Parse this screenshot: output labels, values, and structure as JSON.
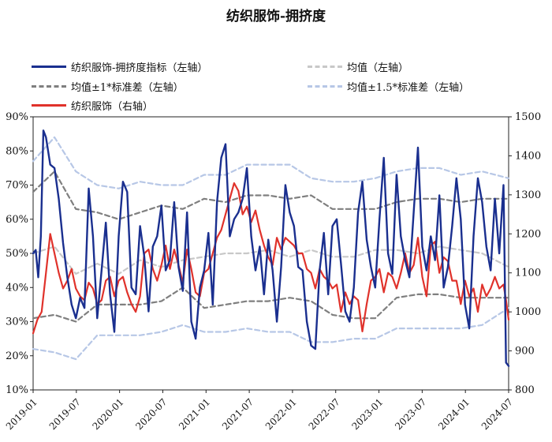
{
  "chart_data": {
    "type": "line",
    "title": "纺织服饰-拥挤度",
    "xlabel": "",
    "ylabel_left": "",
    "ylabel_right": "",
    "y_left": {
      "min": 10,
      "max": 90,
      "ticks": [
        "10%",
        "20%",
        "30%",
        "40%",
        "50%",
        "60%",
        "70%",
        "80%",
        "90%"
      ]
    },
    "y_right": {
      "min": 800,
      "max": 1500,
      "ticks": [
        "800",
        "900",
        "1000",
        "1100",
        "1200",
        "1300",
        "1400",
        "1500"
      ]
    },
    "x_ticks": [
      "2019-01",
      "2019-07",
      "2020-01",
      "2020-07",
      "2021-01",
      "2021-07",
      "2022-01",
      "2022-07",
      "2023-01",
      "2023-07",
      "2024-01",
      "2024-07"
    ],
    "legend": [
      {
        "label": "纺织服饰-拥挤度指标（左轴）",
        "color": "#1a2f8f",
        "style": "solid"
      },
      {
        "label": "均值（左轴）",
        "color": "#c8c8c8",
        "style": "dashed"
      },
      {
        "label": "均值±1*标准差（左轴）",
        "color": "#7f7f7f",
        "style": "dashed"
      },
      {
        "label": "均值±1.5*标准差（左轴）",
        "color": "#b7c7e6",
        "style": "dashed"
      },
      {
        "label": "纺织服饰（右轴）",
        "color": "#e0322b",
        "style": "solid"
      }
    ],
    "series": [
      {
        "name": "纺织服饰-拥挤度指标（左轴）",
        "axis": "left",
        "color": "#1a2f8f",
        "x": [
          2019.0,
          2019.03,
          2019.06,
          2019.09,
          2019.12,
          2019.15,
          2019.2,
          2019.25,
          2019.3,
          2019.35,
          2019.4,
          2019.45,
          2019.5,
          2019.55,
          2019.6,
          2019.65,
          2019.7,
          2019.75,
          2019.8,
          2019.85,
          2019.9,
          2019.95,
          2020.0,
          2020.05,
          2020.1,
          2020.15,
          2020.2,
          2020.25,
          2020.3,
          2020.35,
          2020.4,
          2020.45,
          2020.5,
          2020.55,
          2020.6,
          2020.65,
          2020.7,
          2020.75,
          2020.8,
          2020.85,
          2020.9,
          2020.95,
          2021.0,
          2021.05,
          2021.1,
          2021.15,
          2021.2,
          2021.25,
          2021.3,
          2021.35,
          2021.4,
          2021.45,
          2021.5,
          2021.55,
          2021.6,
          2021.65,
          2021.7,
          2021.75,
          2021.8,
          2021.85,
          2021.9,
          2021.95,
          2022.0,
          2022.05,
          2022.1,
          2022.15,
          2022.2,
          2022.25,
          2022.3,
          2022.35,
          2022.4,
          2022.45,
          2022.5,
          2022.55,
          2022.6,
          2022.65,
          2022.7,
          2022.75,
          2022.8,
          2022.85,
          2022.9,
          2022.95,
          2023.0,
          2023.05,
          2023.1,
          2023.15,
          2023.2,
          2023.25,
          2023.3,
          2023.35,
          2023.4,
          2023.45,
          2023.5,
          2023.55,
          2023.6,
          2023.65,
          2023.7,
          2023.75,
          2023.8,
          2023.85,
          2023.9,
          2023.95,
          2024.0,
          2024.05,
          2024.1,
          2024.15,
          2024.2,
          2024.25,
          2024.3,
          2024.35,
          2024.4,
          2024.45,
          2024.5,
          2024.53,
          2024.56
        ],
        "y": [
          50,
          51,
          43,
          55,
          86,
          84,
          76,
          75,
          66,
          53,
          43,
          35,
          31,
          37,
          34,
          69,
          55,
          31,
          45,
          59,
          38,
          27,
          55,
          71,
          68,
          40,
          38,
          58,
          49,
          33,
          52,
          55,
          64,
          45,
          48,
          65,
          46,
          39,
          62,
          30,
          25,
          40,
          45,
          56,
          35,
          65,
          78,
          82,
          55,
          60,
          62,
          66,
          75,
          55,
          45,
          52,
          38,
          54,
          45,
          30,
          46,
          70,
          62,
          58,
          46,
          45,
          30,
          23,
          22,
          45,
          56,
          38,
          58,
          60,
          47,
          33,
          30,
          40,
          62,
          71,
          54,
          46,
          40,
          60,
          78,
          50,
          44,
          73,
          55,
          48,
          43,
          62,
          81,
          52,
          45,
          55,
          48,
          67,
          40,
          46,
          58,
          72,
          60,
          35,
          28,
          55,
          72,
          65,
          52,
          45,
          66,
          50,
          70,
          18,
          17
        ]
      },
      {
        "name": "均值（左轴）",
        "axis": "left",
        "color": "#c8c8c8",
        "x": [
          2019.0,
          2019.25,
          2019.5,
          2019.75,
          2020.0,
          2020.25,
          2020.5,
          2020.75,
          2021.0,
          2021.25,
          2021.5,
          2021.75,
          2022.0,
          2022.25,
          2022.5,
          2022.75,
          2023.0,
          2023.25,
          2023.5,
          2023.75,
          2024.0,
          2024.25,
          2024.56
        ],
        "y": [
          50,
          52,
          44,
          47,
          44,
          48,
          46,
          48,
          49,
          50,
          50,
          51,
          49,
          51,
          49,
          49,
          51,
          51,
          50,
          52,
          51,
          50,
          46
        ]
      },
      {
        "name": "均值±1*标准差（左轴）",
        "axis": "left",
        "color": "#7f7f7f",
        "x": [
          2019.0,
          2019.25,
          2019.5,
          2019.75,
          2020.0,
          2020.25,
          2020.5,
          2020.75,
          2021.0,
          2021.25,
          2021.5,
          2021.75,
          2022.0,
          2022.25,
          2022.5,
          2022.75,
          2023.0,
          2023.25,
          2023.5,
          2023.75,
          2024.0,
          2024.25,
          2024.56
        ],
        "y": [
          68,
          74,
          63,
          62,
          60,
          62,
          64,
          63,
          66,
          65,
          67,
          67,
          66,
          67,
          63,
          63,
          63,
          65,
          66,
          66,
          65,
          66,
          66
        ]
      },
      {
        "name": "均值±1*标准差（左轴）下",
        "axis": "left",
        "color": "#7f7f7f",
        "x": [
          2019.0,
          2019.25,
          2019.5,
          2019.75,
          2020.0,
          2020.25,
          2020.5,
          2020.75,
          2021.0,
          2021.25,
          2021.5,
          2021.75,
          2022.0,
          2022.25,
          2022.5,
          2022.75,
          2023.0,
          2023.25,
          2023.5,
          2023.75,
          2024.0,
          2024.25,
          2024.56
        ],
        "y": [
          31,
          32,
          30,
          35,
          35,
          35,
          36,
          40,
          34,
          35,
          36,
          36,
          37,
          36,
          32,
          31,
          31,
          37,
          38,
          38,
          37,
          37,
          37
        ]
      },
      {
        "name": "均值±1.5*标准差（左轴）",
        "axis": "left",
        "color": "#b7c7e6",
        "x": [
          2019.0,
          2019.25,
          2019.5,
          2019.75,
          2020.0,
          2020.25,
          2020.5,
          2020.75,
          2021.0,
          2021.25,
          2021.5,
          2021.75,
          2022.0,
          2022.25,
          2022.5,
          2022.75,
          2023.0,
          2023.25,
          2023.5,
          2023.75,
          2024.0,
          2024.25,
          2024.56
        ],
        "y": [
          77,
          84,
          74,
          70,
          69,
          71,
          70,
          70,
          73,
          73,
          76,
          76,
          76,
          72,
          71,
          71,
          72,
          74,
          75,
          75,
          73,
          74,
          72
        ]
      },
      {
        "name": "均值±1.5*标准差（左轴）下",
        "axis": "left",
        "color": "#b7c7e6",
        "x": [
          2019.0,
          2019.25,
          2019.5,
          2019.75,
          2020.0,
          2020.25,
          2020.5,
          2020.75,
          2021.0,
          2021.25,
          2021.5,
          2021.75,
          2022.0,
          2022.25,
          2022.5,
          2022.75,
          2023.0,
          2023.25,
          2023.5,
          2023.75,
          2024.0,
          2024.25,
          2024.56
        ],
        "y": [
          22,
          21,
          19,
          26,
          26,
          26,
          27,
          29,
          27,
          27,
          28,
          27,
          27,
          24,
          24,
          25,
          25,
          28,
          28,
          28,
          28,
          29,
          34
        ]
      },
      {
        "name": "纺织服饰（右轴）",
        "axis": "right",
        "color": "#e0322b",
        "x": [
          2019.0,
          2019.05,
          2019.1,
          2019.15,
          2019.2,
          2019.25,
          2019.3,
          2019.35,
          2019.4,
          2019.45,
          2019.5,
          2019.55,
          2019.6,
          2019.65,
          2019.7,
          2019.75,
          2019.8,
          2019.85,
          2019.9,
          2019.95,
          2020.0,
          2020.05,
          2020.1,
          2020.15,
          2020.2,
          2020.25,
          2020.3,
          2020.35,
          2020.4,
          2020.45,
          2020.5,
          2020.55,
          2020.6,
          2020.65,
          2020.7,
          2020.75,
          2020.8,
          2020.85,
          2020.9,
          2020.95,
          2021.0,
          2021.05,
          2021.1,
          2021.15,
          2021.2,
          2021.25,
          2021.3,
          2021.35,
          2021.4,
          2021.45,
          2021.5,
          2021.55,
          2021.6,
          2021.65,
          2021.7,
          2021.75,
          2021.8,
          2021.85,
          2021.9,
          2021.95,
          2022.0,
          2022.05,
          2022.1,
          2022.15,
          2022.2,
          2022.25,
          2022.3,
          2022.35,
          2022.4,
          2022.45,
          2022.5,
          2022.55,
          2022.6,
          2022.65,
          2022.7,
          2022.75,
          2022.8,
          2022.85,
          2022.9,
          2022.95,
          2023.0,
          2023.05,
          2023.1,
          2023.15,
          2023.2,
          2023.25,
          2023.3,
          2023.35,
          2023.4,
          2023.45,
          2023.5,
          2023.55,
          2023.6,
          2023.65,
          2023.7,
          2023.75,
          2023.8,
          2023.85,
          2023.9,
          2023.95,
          2024.0,
          2024.05,
          2024.1,
          2024.15,
          2024.2,
          2024.25,
          2024.3,
          2024.35,
          2024.4,
          2024.45,
          2024.5,
          2024.53,
          2024.56
        ],
        "y": [
          945,
          980,
          1000,
          1100,
          1200,
          1150,
          1100,
          1060,
          1080,
          1110,
          1060,
          1040,
          1030,
          1075,
          1060,
          1020,
          1030,
          1080,
          1090,
          1040,
          1080,
          1090,
          1050,
          1020,
          1000,
          1040,
          1150,
          1160,
          1110,
          1080,
          1120,
          1170,
          1110,
          1160,
          1120,
          1075,
          1160,
          1110,
          1050,
          1040,
          1100,
          1110,
          1150,
          1190,
          1210,
          1250,
          1290,
          1330,
          1310,
          1250,
          1270,
          1230,
          1260,
          1210,
          1170,
          1140,
          1120,
          1190,
          1160,
          1190,
          1180,
          1170,
          1150,
          1150,
          1110,
          1100,
          1060,
          1110,
          1090,
          1080,
          1060,
          1070,
          1000,
          1050,
          1020,
          1040,
          1030,
          950,
          1020,
          1080,
          1090,
          1110,
          1050,
          1100,
          1090,
          1060,
          1100,
          1150,
          1100,
          1120,
          1190,
          1090,
          1040,
          1170,
          1180,
          1100,
          1140,
          1130,
          1080,
          1080,
          1020,
          1080,
          1040,
          1060,
          1000,
          1070,
          1040,
          1060,
          1090,
          1060,
          1070,
          1030,
          980
        ]
      }
    ]
  }
}
